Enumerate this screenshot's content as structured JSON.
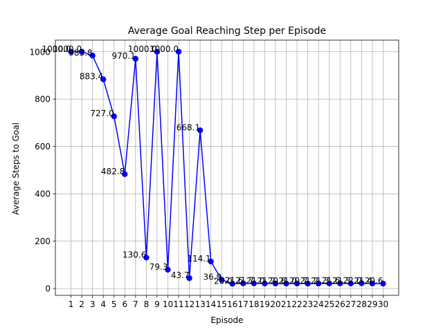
{
  "chart_data": {
    "type": "line",
    "title": "Average Goal Reaching Step per Episode",
    "xlabel": "Episode",
    "ylabel": "Average Steps to Goal",
    "x": [
      1,
      2,
      3,
      4,
      5,
      6,
      7,
      8,
      9,
      10,
      11,
      12,
      13,
      14,
      15,
      16,
      17,
      18,
      19,
      20,
      21,
      22,
      23,
      24,
      25,
      26,
      27,
      28,
      29,
      30
    ],
    "series": [
      {
        "values": [
          1000.0,
          1000.0,
          983.8,
          883.4,
          727.0,
          482.8,
          970.1,
          130.6,
          1000.0,
          79.3,
          1000.0,
          43.7,
          668.1,
          114.1,
          36.9,
          20.0,
          21.6,
          21.7,
          21.0,
          21.2,
          20.8,
          21.0,
          20.7,
          21.2,
          21.3,
          21.6,
          21.3,
          22.0,
          21.4,
          20.6
        ],
        "labels": [
          "1000.0",
          "1000.0",
          "983.8",
          "883.4",
          "727.0",
          "482.8",
          "970.1",
          "130.6",
          "1000.0",
          "79.3",
          "1000.0",
          "43.7",
          "668.1",
          "114.1",
          "36.9",
          "20.0",
          "21.6",
          "21.7",
          "21.0",
          "21.2",
          "20.8",
          "21.0",
          "20.7",
          "21.2",
          "21.3",
          "21.6",
          "21.3",
          "22.0",
          "21.4",
          "20.6"
        ],
        "color": "#0000ff"
      }
    ],
    "xticks": [
      "1",
      "2",
      "3",
      "4",
      "5",
      "6",
      "7",
      "8",
      "9",
      "10",
      "11",
      "12",
      "13",
      "14",
      "15",
      "16",
      "17",
      "18",
      "19",
      "20",
      "21",
      "22",
      "23",
      "24",
      "25",
      "26",
      "27",
      "28",
      "29",
      "30"
    ],
    "yticks": [
      "0",
      "200",
      "400",
      "600",
      "800",
      "1000"
    ],
    "ylim": [
      -28.9,
      1049.0
    ],
    "xlim": [
      -0.45,
      31.45
    ],
    "grid": true
  }
}
